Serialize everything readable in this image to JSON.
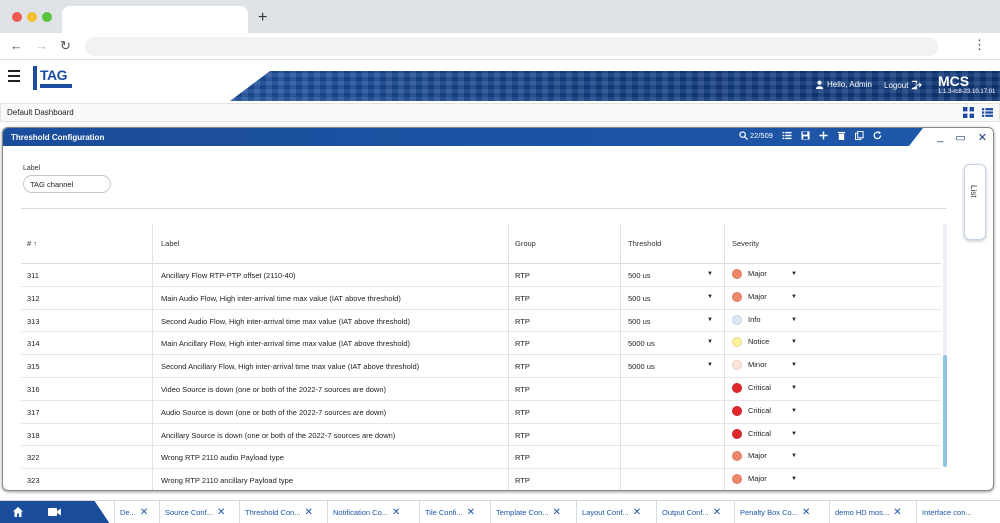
{
  "app": {
    "logo_text": "TAG",
    "greeting": "Hello, Admin",
    "logout": "Logout",
    "product": "MCS",
    "version": "1.1.3-rc8-23.10.17.01"
  },
  "dashboard": {
    "title": "Default Dashboard"
  },
  "panel": {
    "title": "Threshold Configuration",
    "search_count": "22/509",
    "label_field": {
      "label": "Label",
      "value": "TAG channel"
    },
    "list_tab": "List"
  },
  "table": {
    "headers": {
      "num": "#",
      "label": "Label",
      "group": "Group",
      "threshold": "Threshold",
      "severity": "Severity"
    },
    "rows": [
      {
        "num": "311",
        "label": "Ancillary Flow RTP-PTP offset (2110-40)",
        "group": "RTP",
        "threshold": "500 us",
        "severity": "Major",
        "color": "#f0866a"
      },
      {
        "num": "312",
        "label": "Main Audio Flow, High inter-arrival time max value (IAT above threshold)",
        "group": "RTP",
        "threshold": "500 us",
        "severity": "Major",
        "color": "#f0866a"
      },
      {
        "num": "313",
        "label": "Second Audio Flow, High inter-arrival time max value (IAT above threshold)",
        "group": "RTP",
        "threshold": "500 us",
        "severity": "Info",
        "color": "#dde9f5"
      },
      {
        "num": "314",
        "label": "Main Ancillary Flow, High inter-arrival time max value (IAT above threshold)",
        "group": "RTP",
        "threshold": "5000 us",
        "severity": "Notice",
        "color": "#fbf29a"
      },
      {
        "num": "315",
        "label": "Second Ancillary Flow, High inter-arrival time max value (IAT above threshold)",
        "group": "RTP",
        "threshold": "5000 us",
        "severity": "Minor",
        "color": "#fbe3d7"
      },
      {
        "num": "316",
        "label": "Video Source is down (one or both of the 2022-7 sources are down)",
        "group": "RTP",
        "threshold": "",
        "severity": "Critical",
        "color": "#e0282a"
      },
      {
        "num": "317",
        "label": "Audio Source is down (one or both of the 2022-7 sources are down)",
        "group": "RTP",
        "threshold": "",
        "severity": "Critical",
        "color": "#e0282a"
      },
      {
        "num": "318",
        "label": "Ancillary Source is down (one or both of the 2022-7 sources are down)",
        "group": "RTP",
        "threshold": "",
        "severity": "Critical",
        "color": "#e0282a"
      },
      {
        "num": "322",
        "label": "Wrong RTP 2110 audio Payload type",
        "group": "RTP",
        "threshold": "",
        "severity": "Major",
        "color": "#f0866a"
      },
      {
        "num": "323",
        "label": "Wrong RTP 2110 ancillary Payload type",
        "group": "RTP",
        "threshold": "",
        "severity": "Major",
        "color": "#f0866a"
      }
    ]
  },
  "taskbar": {
    "tabs": [
      "De...",
      "Source Conf...",
      "Threshold Con...",
      "Notification Co...",
      "Tile Confi...",
      "Template Con...",
      "Layout Conf...",
      "Output Conf...",
      "Penalty Box Co...",
      "demo HD mos...",
      "Interface con..."
    ]
  }
}
